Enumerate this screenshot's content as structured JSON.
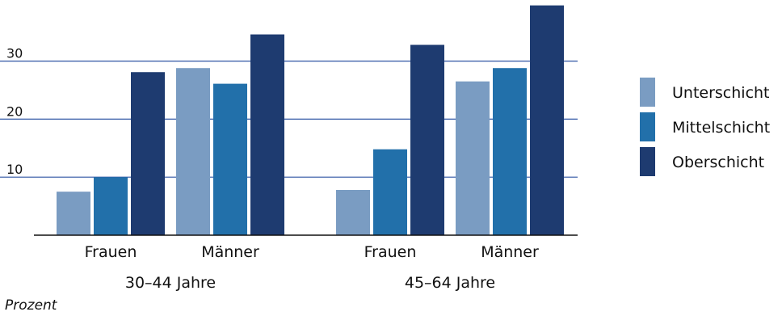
{
  "chart_data": {
    "type": "bar",
    "groups": [
      {
        "label": "30–44 Jahre",
        "categories": [
          "Frauen",
          "Männer"
        ]
      },
      {
        "label": "45–64 Jahre",
        "categories": [
          "Frauen",
          "Männer"
        ]
      }
    ],
    "series": [
      {
        "name": "Unterschicht",
        "color": "#7a9cc2",
        "values": [
          7.5,
          28.8,
          7.8,
          26.5
        ]
      },
      {
        "name": "Mittelschicht",
        "color": "#2270aa",
        "values": [
          10.0,
          26.1,
          14.8,
          28.8
        ]
      },
      {
        "name": "Oberschicht",
        "color": "#1e3b70",
        "values": [
          28.1,
          34.6,
          32.8,
          39.6
        ]
      }
    ],
    "y_ticks": [
      10,
      20,
      30
    ],
    "ylim": [
      0,
      40
    ],
    "ylabel": "Prozent",
    "grid": true,
    "grid_color": "#2f55a4",
    "legend_position": "right"
  }
}
